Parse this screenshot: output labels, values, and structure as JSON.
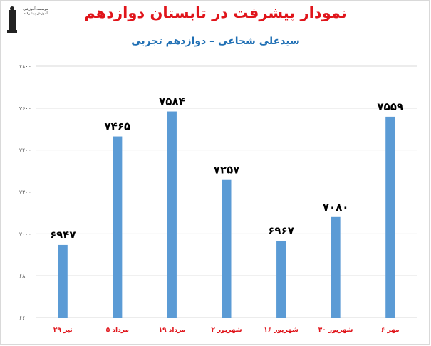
{
  "title": "نمودار پیشرفت در تابستان دوازدهم",
  "subtitle": "سیدعلی شجاعی – دوازدهم تجربی",
  "logo_text": "موسسه آموزشی آموزش پیشرفته",
  "colors": {
    "bar": "#5b9bd5",
    "title": "#e0151b",
    "subtitle": "#1f6fb4",
    "grid": "#d9d9d9",
    "axis_text": "#595959"
  },
  "chart_data": {
    "type": "bar",
    "categories": [
      "۲۹ تیر",
      "۵ مرداد",
      "۱۹ مرداد",
      "۲ شهریور",
      "۱۶ شهریور",
      "۳۰ شهریور",
      "۶ مهر"
    ],
    "values": [
      6947,
      7465,
      7584,
      7257,
      6967,
      7080,
      7559
    ],
    "value_labels": [
      "۶۹۴۷",
      "۷۴۶۵",
      "۷۵۸۴",
      "۷۲۵۷",
      "۶۹۶۷",
      "۷۰۸۰",
      "۷۵۵۹"
    ],
    "ylim": [
      6600,
      7800
    ],
    "yticks": [
      6600,
      6800,
      7000,
      7200,
      7400,
      7600,
      7800
    ],
    "ytick_labels": [
      "۶۶۰۰",
      "۶۸۰۰",
      "۷۰۰۰",
      "۷۲۰۰",
      "۷۴۰۰",
      "۷۶۰۰",
      "۷۸۰۰"
    ],
    "grid": true,
    "xlabel": "",
    "ylabel": ""
  }
}
